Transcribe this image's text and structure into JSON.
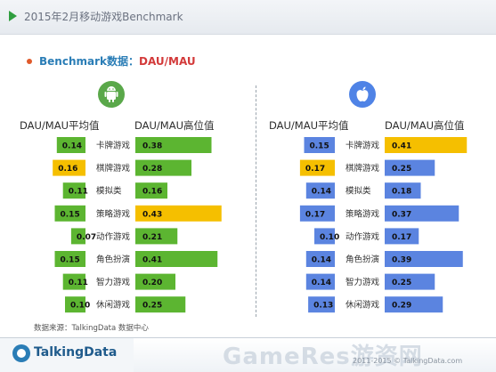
{
  "header": {
    "title": "2015年2月移动游戏Benchmark"
  },
  "subtitle": {
    "prefix": "Benchmark数据：",
    "metric": "DAU/MAU"
  },
  "source": "数据来源：TalkingData 数据中心",
  "footer": {
    "brand": "TalkingData",
    "watermark": "GameRes游资网",
    "copyright": "2011-2015 © TalkingData.com"
  },
  "colors": {
    "green": "#5cb531",
    "blue": "#5b84e0",
    "highlight": "#f5bf00"
  },
  "chart_data": [
    {
      "type": "bar",
      "platform_icon": "android-icon",
      "categories": [
        "卡牌游戏",
        "棋牌游戏",
        "模拟类",
        "策略游戏",
        "动作游戏",
        "角色扮演",
        "智力游戏",
        "休闲游戏"
      ],
      "series": [
        {
          "name": "DAU/MAU平均值",
          "values": [
            0.14,
            0.16,
            0.11,
            0.15,
            0.07,
            0.15,
            0.11,
            0.1
          ],
          "value_labels": [
            "0.14",
            "0.16",
            "0.11",
            "0.15",
            "0.07",
            "0.15",
            "0.11",
            "0.10"
          ],
          "highlight_index": 1
        },
        {
          "name": "DAU/MAU高位值",
          "values": [
            0.38,
            0.28,
            0.16,
            0.43,
            0.21,
            0.41,
            0.2,
            0.25
          ],
          "value_labels": [
            "0.38",
            "0.28",
            "0.16",
            "0.43",
            "0.21",
            "0.41",
            "0.20",
            "0.25"
          ],
          "highlight_index": 3
        }
      ]
    },
    {
      "type": "bar",
      "platform_icon": "apple-icon",
      "categories": [
        "卡牌游戏",
        "棋牌游戏",
        "模拟类",
        "策略游戏",
        "动作游戏",
        "角色扮演",
        "智力游戏",
        "休闲游戏"
      ],
      "series": [
        {
          "name": "DAU/MAU平均值",
          "values": [
            0.15,
            0.17,
            0.14,
            0.17,
            0.1,
            0.14,
            0.14,
            0.13
          ],
          "value_labels": [
            "0.15",
            "0.17",
            "0.14",
            "0.17",
            "0.10",
            "0.14",
            "0.14",
            "0.13"
          ],
          "highlight_index": 1
        },
        {
          "name": "DAU/MAU高位值",
          "values": [
            0.41,
            0.25,
            0.18,
            0.37,
            0.17,
            0.39,
            0.25,
            0.29
          ],
          "value_labels": [
            "0.41",
            "0.25",
            "0.18",
            "0.37",
            "0.17",
            "0.39",
            "0.25",
            "0.29"
          ],
          "highlight_index": 0
        }
      ]
    }
  ]
}
